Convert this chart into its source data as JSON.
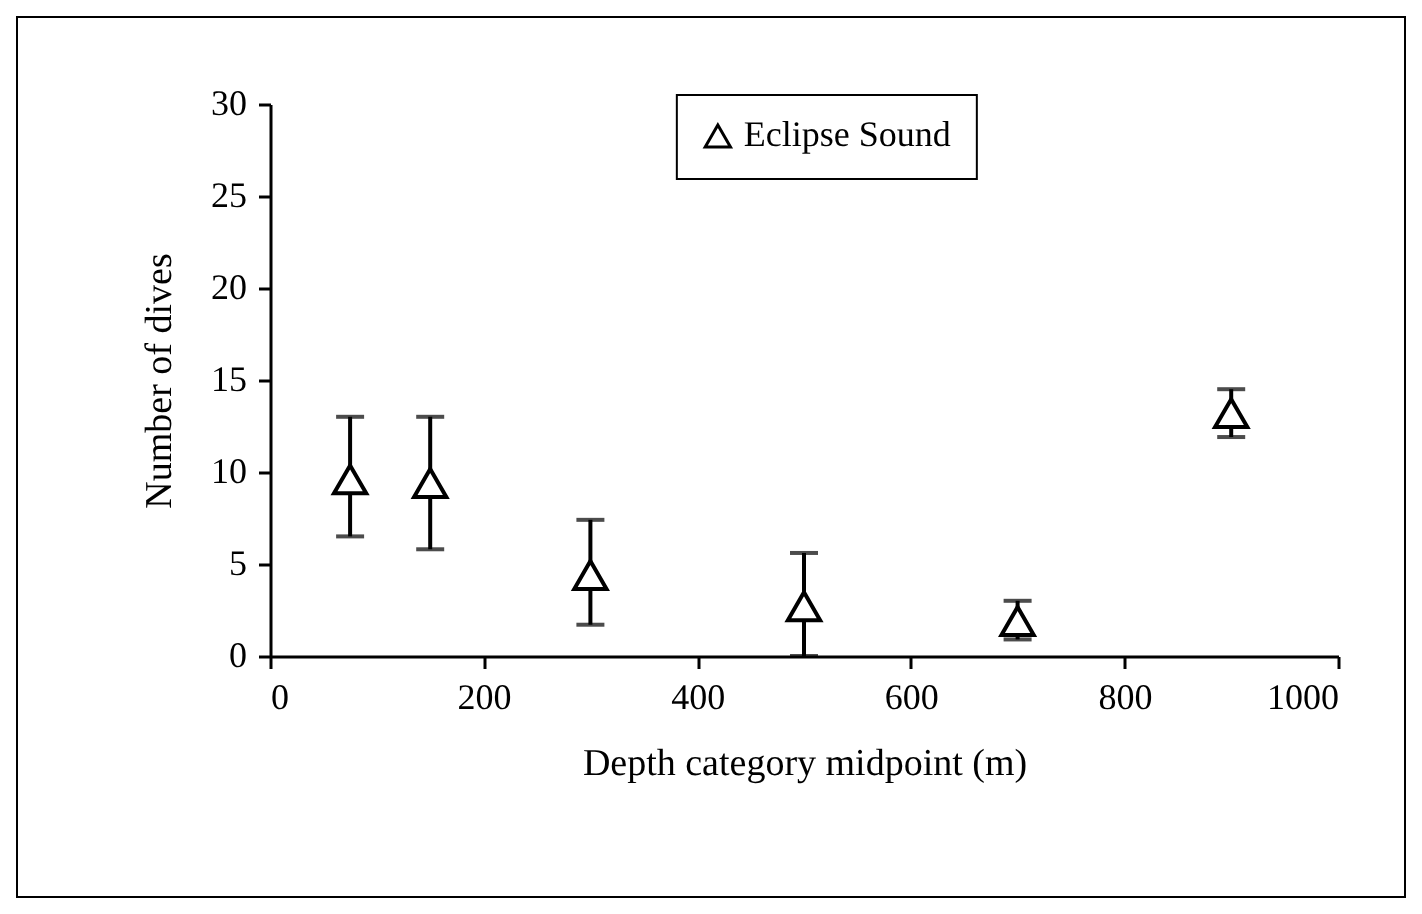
{
  "chart_data": {
    "type": "scatter",
    "xlabel": "Depth category midpoint (m)",
    "ylabel": "Number of dives",
    "x": [
      75,
      150,
      300,
      500,
      700,
      900
    ],
    "series": [
      {
        "name": "Eclipse Sound",
        "color": "#000000",
        "values": [
          9.6,
          9.4,
          4.4,
          2.7,
          1.9,
          13.2
        ],
        "errors": [
          [
            6.5,
            13.0
          ],
          [
            5.8,
            13.0
          ],
          [
            1.7,
            7.4
          ],
          [
            0,
            5.6
          ],
          [
            0.9,
            3.0
          ],
          [
            11.9,
            14.5
          ]
        ]
      }
    ],
    "xlim": [
      0,
      1000
    ],
    "xticks": [
      0,
      200,
      400,
      600,
      800,
      1000
    ],
    "ylim": [
      0,
      30
    ],
    "yticks": [
      0,
      5,
      10,
      15,
      20,
      25,
      30
    ],
    "marker": "triangle",
    "legend": "top"
  }
}
